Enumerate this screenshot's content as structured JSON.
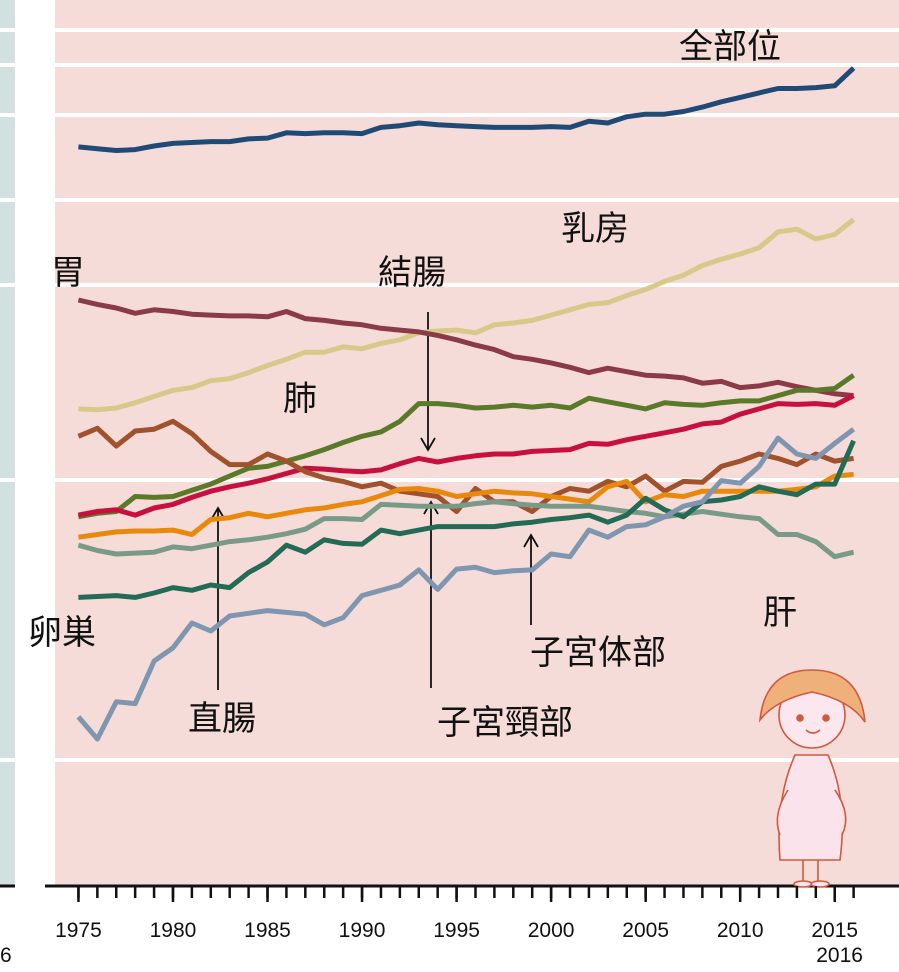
{
  "chart_data": {
    "type": "line",
    "x": [
      1975,
      1976,
      1977,
      1978,
      1979,
      1980,
      1981,
      1982,
      1983,
      1984,
      1985,
      1986,
      1987,
      1988,
      1989,
      1990,
      1991,
      1992,
      1993,
      1994,
      1995,
      1996,
      1997,
      1998,
      1999,
      2000,
      2001,
      2002,
      2003,
      2004,
      2005,
      2006,
      2007,
      2008,
      2009,
      2010,
      2011,
      2012,
      2013,
      2014,
      2015,
      2016
    ],
    "xlim": [
      1973.76,
      2018.4
    ],
    "xticks": [
      1975,
      1980,
      1985,
      1990,
      1995,
      2000,
      2005,
      2010,
      2015
    ],
    "ylim": [
      0,
      100
    ],
    "left_panel_fragment": "6",
    "series": [
      {
        "name": "全部位",
        "color": "#1f4a75",
        "values": [
          83.4,
          83.2,
          83.0,
          83.1,
          83.5,
          83.8,
          83.9,
          84.0,
          84.0,
          84.3,
          84.4,
          85.0,
          84.9,
          85.0,
          85.0,
          84.9,
          85.6,
          85.8,
          86.1,
          85.9,
          85.8,
          85.7,
          85.6,
          85.6,
          85.6,
          85.7,
          85.6,
          86.3,
          86.1,
          86.8,
          87.1,
          87.1,
          87.4,
          87.9,
          88.5,
          89.0,
          89.5,
          90.0,
          90.0,
          90.1,
          90.3,
          92.3
        ]
      },
      {
        "name": "乳房",
        "color": "#d6c98a",
        "values": [
          53.8,
          53.7,
          53.9,
          54.5,
          55.2,
          55.9,
          56.2,
          57.0,
          57.2,
          57.9,
          58.7,
          59.4,
          60.2,
          60.2,
          60.8,
          60.6,
          61.2,
          61.6,
          62.4,
          62.6,
          62.7,
          62.4,
          63.3,
          63.5,
          63.8,
          64.4,
          65.0,
          65.6,
          65.8,
          66.6,
          67.3,
          68.2,
          68.9,
          70.0,
          70.7,
          71.3,
          72.0,
          73.8,
          74.1,
          73.0,
          73.5,
          75.2
        ]
      },
      {
        "name": "胃",
        "color": "#8b3a47",
        "values": [
          66.1,
          65.6,
          65.2,
          64.6,
          65.0,
          64.8,
          64.5,
          64.4,
          64.3,
          64.3,
          64.2,
          64.8,
          64.0,
          63.8,
          63.5,
          63.3,
          62.9,
          62.7,
          62.5,
          62.1,
          61.6,
          61.0,
          60.5,
          59.7,
          59.4,
          59.0,
          58.5,
          57.9,
          58.4,
          58.0,
          57.6,
          57.5,
          57.3,
          56.7,
          56.9,
          56.2,
          56.4,
          56.8,
          56.3,
          55.9,
          55.5,
          55.3
        ]
      },
      {
        "name": "結腸",
        "color": "#5a7a2a",
        "values": [
          41.6,
          42.0,
          42.2,
          43.9,
          43.8,
          43.9,
          44.6,
          45.3,
          46.2,
          47.1,
          47.3,
          47.9,
          48.5,
          49.2,
          50.0,
          50.7,
          51.2,
          52.4,
          54.4,
          54.4,
          54.2,
          53.9,
          54.0,
          54.2,
          54.0,
          54.2,
          53.9,
          55.0,
          54.6,
          54.2,
          53.8,
          54.5,
          54.3,
          54.2,
          54.5,
          54.7,
          54.7,
          55.3,
          55.9,
          55.9,
          56.1,
          57.6
        ]
      },
      {
        "name": "肺",
        "color": "#c8103e",
        "values": [
          41.8,
          42.2,
          42.4,
          41.8,
          42.6,
          43.0,
          43.8,
          44.5,
          45.0,
          45.4,
          45.9,
          46.5,
          47.1,
          47.0,
          46.8,
          46.7,
          46.9,
          47.6,
          48.2,
          47.8,
          48.2,
          48.5,
          48.7,
          48.7,
          49.0,
          49.1,
          49.2,
          49.9,
          49.8,
          50.3,
          50.7,
          51.1,
          51.5,
          52.1,
          52.3,
          53.2,
          53.8,
          54.4,
          54.3,
          54.4,
          54.2,
          55.3
        ]
      },
      {
        "name": "子宮頸部",
        "color": "#a0522d",
        "values": [
          50.7,
          51.6,
          49.6,
          51.3,
          51.5,
          52.4,
          51.0,
          49.0,
          47.5,
          47.5,
          48.7,
          47.9,
          46.7,
          46.0,
          45.6,
          45.0,
          45.4,
          44.5,
          44.2,
          43.9,
          42.2,
          44.8,
          43.3,
          43.3,
          42.2,
          43.9,
          44.8,
          44.5,
          45.6,
          45.0,
          46.2,
          44.5,
          45.6,
          45.5,
          47.3,
          47.9,
          48.7,
          48.2,
          47.5,
          48.7,
          47.9,
          48.2
        ]
      },
      {
        "name": "直腸",
        "color": "#e8890c",
        "values": [
          39.3,
          39.6,
          39.9,
          40.0,
          40.0,
          40.1,
          39.6,
          41.3,
          41.5,
          42.0,
          41.6,
          42.0,
          42.4,
          42.6,
          43.0,
          43.3,
          44.0,
          44.7,
          44.8,
          44.5,
          43.9,
          44.2,
          44.5,
          44.3,
          44.2,
          43.9,
          43.6,
          43.3,
          45.0,
          45.6,
          43.3,
          44.1,
          43.9,
          44.5,
          44.5,
          44.5,
          44.5,
          44.5,
          44.7,
          45.0,
          46.2,
          46.4
        ]
      },
      {
        "name": "肝",
        "color": "#7a9a88",
        "values": [
          38.4,
          37.8,
          37.4,
          37.5,
          37.6,
          38.2,
          38.0,
          38.4,
          38.8,
          39.0,
          39.3,
          39.7,
          40.2,
          41.4,
          41.4,
          41.3,
          43.0,
          42.9,
          42.8,
          42.8,
          42.8,
          43.1,
          43.3,
          43.1,
          42.9,
          42.8,
          42.8,
          42.8,
          42.5,
          42.2,
          42.0,
          41.6,
          41.9,
          42.2,
          41.9,
          41.6,
          41.4,
          39.6,
          39.6,
          38.8,
          37.1,
          37.6
        ]
      },
      {
        "name": "子宮体部",
        "color": "#236b55",
        "values": [
          32.5,
          32.6,
          32.7,
          32.5,
          33.0,
          33.6,
          33.3,
          33.9,
          33.6,
          35.3,
          36.5,
          38.4,
          37.6,
          39.0,
          38.6,
          38.5,
          40.1,
          39.7,
          40.1,
          40.5,
          40.5,
          40.5,
          40.5,
          40.8,
          41.0,
          41.3,
          41.5,
          41.8,
          41.0,
          41.8,
          43.7,
          42.4,
          41.6,
          43.3,
          43.5,
          43.9,
          45.0,
          44.5,
          44.1,
          45.3,
          45.3,
          50.2
        ]
      },
      {
        "name": "卵巣",
        "color": "#7f96b0",
        "values": [
          19.0,
          16.5,
          20.7,
          20.5,
          25.3,
          26.8,
          29.6,
          28.7,
          30.4,
          30.7,
          31.0,
          30.8,
          30.6,
          29.4,
          30.2,
          32.7,
          33.3,
          33.9,
          35.6,
          33.4,
          35.7,
          35.9,
          35.3,
          35.5,
          35.6,
          37.4,
          37.1,
          40.1,
          39.3,
          40.5,
          40.7,
          41.6,
          42.8,
          43.3,
          45.7,
          45.4,
          47.3,
          50.5,
          48.7,
          48.2,
          49.9,
          51.5
        ]
      }
    ]
  }
}
